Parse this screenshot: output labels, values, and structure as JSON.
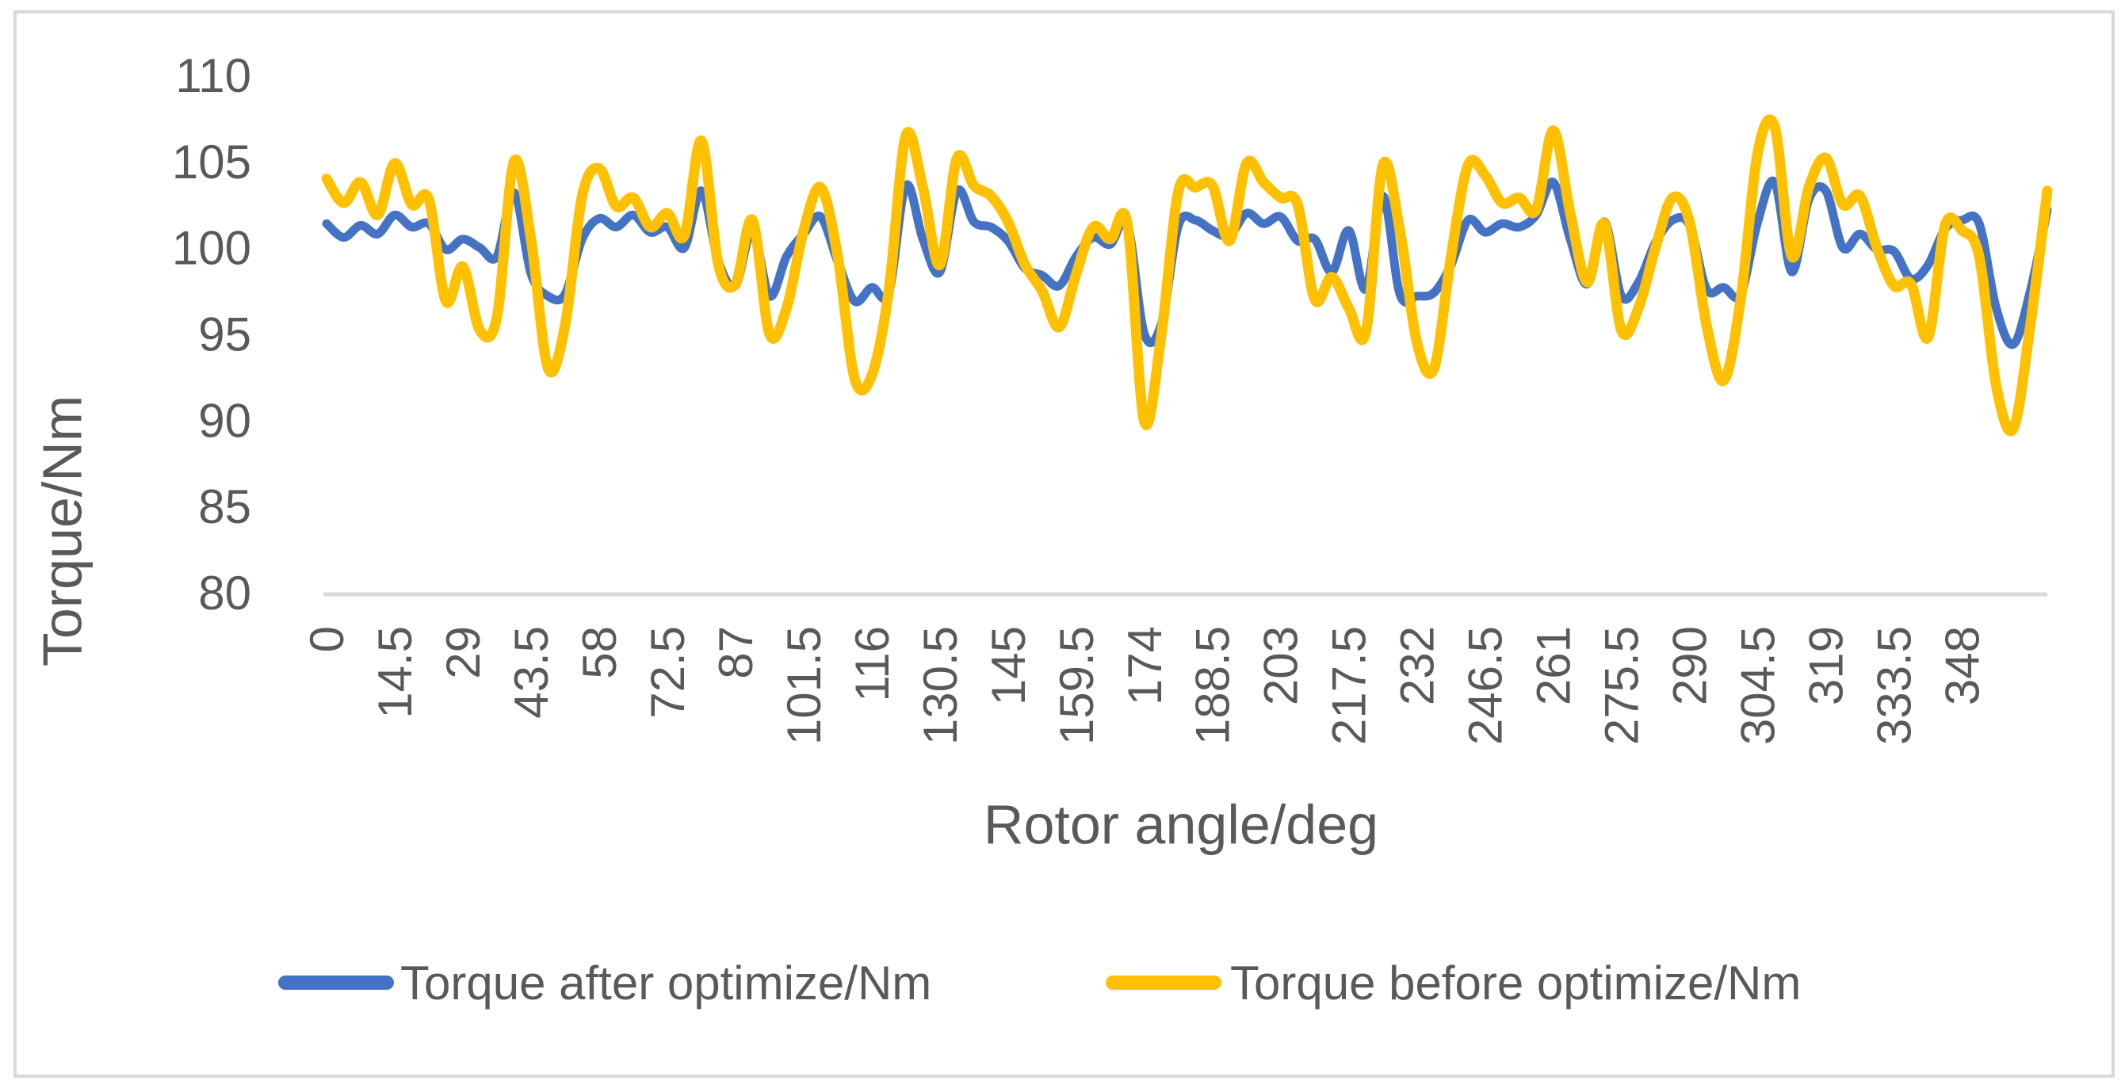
{
  "frame": {
    "border_color": "#D9D9D9",
    "background": "#FFFFFF",
    "text_color": "#595959"
  },
  "chart_data": {
    "type": "line",
    "title": "",
    "xlabel": "Rotor angle/deg",
    "ylabel": "Torque/Nm",
    "legend_position": "bottom",
    "grid": "off",
    "ylim": [
      80,
      110
    ],
    "y_ticks": [
      80,
      85,
      90,
      95,
      100,
      105,
      110
    ],
    "x_start_deg": 0,
    "x_step_deg": 3.625,
    "x_tick_every_n_points": 4,
    "x_tick_labels": [
      "0",
      "14.5",
      "29",
      "43.5",
      "58",
      "72.5",
      "87",
      "101.5",
      "116",
      "130.5",
      "145",
      "159.5",
      "174",
      "188.5",
      "203",
      "217.5",
      "232",
      "246.5",
      "261",
      "275.5",
      "290",
      "304.5",
      "319",
      "333.5",
      "348"
    ],
    "series": [
      {
        "name": "Torque after optimize/Nm",
        "color": "#4472C4",
        "stroke_width": 11,
        "values": [
          101.4,
          100.6,
          101.3,
          100.8,
          101.9,
          101.2,
          101.4,
          99.9,
          100.5,
          100.0,
          99.5,
          103.2,
          98.5,
          97.2,
          97.3,
          100.5,
          101.7,
          101.2,
          101.9,
          100.9,
          101.2,
          100.0,
          103.3,
          99.2,
          97.8,
          101.0,
          97.2,
          99.5,
          100.8,
          101.8,
          99.2,
          96.9,
          97.7,
          97.4,
          103.6,
          100.5,
          98.6,
          103.3,
          101.5,
          101.2,
          100.4,
          98.8,
          98.4,
          97.8,
          99.5,
          100.6,
          100.2,
          101.4,
          95.0,
          95.6,
          101.3,
          101.6,
          101.0,
          100.7,
          102.0,
          101.4,
          101.8,
          100.4,
          100.5,
          98.6,
          101.0,
          97.6,
          103.0,
          97.3,
          97.2,
          97.4,
          99.0,
          101.6,
          100.9,
          101.4,
          101.2,
          101.9,
          103.8,
          100.5,
          97.9,
          101.5,
          97.2,
          98.0,
          100.3,
          101.6,
          101.3,
          97.6,
          97.7,
          97.3,
          101.5,
          103.8,
          98.6,
          102.8,
          103.3,
          100.0,
          100.8,
          99.9,
          99.8,
          98.2,
          99.0,
          101.1,
          101.6,
          101.4,
          96.5,
          94.4,
          97.5,
          102.2
        ]
      },
      {
        "name": "Torque before optimize/Nm",
        "color": "#FFC000",
        "stroke_width": 13,
        "values": [
          104.0,
          102.6,
          103.8,
          101.9,
          104.9,
          102.5,
          102.8,
          96.9,
          98.9,
          95.2,
          96.0,
          105.0,
          100.5,
          93.0,
          95.5,
          103.0,
          104.6,
          102.4,
          102.9,
          101.2,
          102.0,
          100.7,
          106.2,
          99.0,
          97.9,
          101.6,
          95.0,
          96.5,
          101.0,
          103.5,
          99.5,
          92.4,
          92.6,
          97.5,
          106.5,
          103.5,
          99.0,
          105.2,
          103.6,
          103.0,
          101.5,
          99.0,
          97.5,
          95.4,
          98.5,
          101.2,
          100.5,
          101.4,
          89.9,
          95.0,
          103.3,
          103.5,
          103.6,
          100.4,
          104.9,
          103.8,
          102.9,
          102.5,
          97.0,
          98.3,
          96.5,
          95.1,
          104.8,
          101.0,
          94.5,
          93.0,
          99.5,
          104.8,
          104.2,
          102.6,
          102.9,
          102.2,
          106.8,
          102.0,
          98.0,
          101.4,
          95.2,
          96.5,
          100.0,
          102.9,
          101.5,
          95.5,
          92.3,
          97.0,
          105.5,
          107.0,
          99.5,
          103.5,
          105.2,
          102.5,
          103.0,
          100.0,
          97.8,
          97.9,
          94.8,
          101.3,
          101.0,
          99.5,
          92.0,
          89.5,
          95.5,
          103.3
        ]
      }
    ]
  }
}
